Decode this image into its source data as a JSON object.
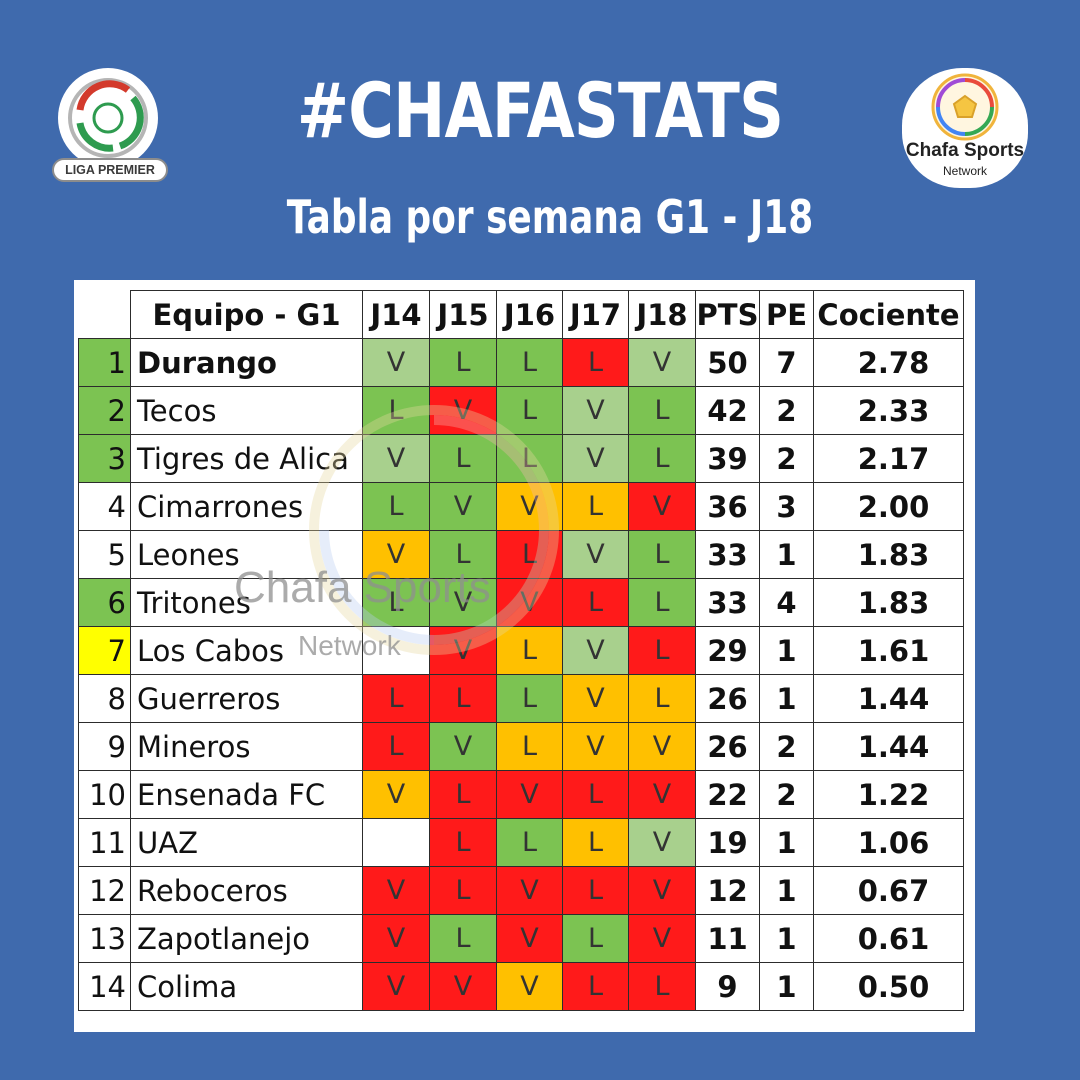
{
  "header": {
    "title": "#CHAFASTATS",
    "subtitle": "Tabla por semana G1 - J18"
  },
  "logos": {
    "left": {
      "label": "LIGA PREMIER",
      "icon": "liga-premier-logo"
    },
    "right": {
      "name": "Chafa Sports",
      "sub": "Network",
      "icon": "soccer-ball-logo"
    }
  },
  "watermark": {
    "name": "Chafa Sports",
    "sub": "Network"
  },
  "colors": {
    "background": "#3f6aad",
    "green": "#7cc352",
    "light_green": "#a8d08d",
    "orange": "#ffc000",
    "red": "#ff1a1a",
    "yellow": "#ffff00"
  },
  "table": {
    "columns": [
      "Equipo - G1",
      "J14",
      "J15",
      "J16",
      "J17",
      "J18",
      "PTS",
      "PE",
      "Cociente"
    ],
    "rows": [
      {
        "rank": "1",
        "team": "Durango",
        "bold": true,
        "rank_color": "green",
        "results": [
          [
            "V",
            "light_green"
          ],
          [
            "L",
            "green"
          ],
          [
            "L",
            "green"
          ],
          [
            "L",
            "red"
          ],
          [
            "V",
            "light_green"
          ]
        ],
        "pts": "50",
        "pe": "7",
        "coc": "2.78"
      },
      {
        "rank": "2",
        "team": "Tecos",
        "bold": false,
        "rank_color": "green",
        "results": [
          [
            "L",
            "green"
          ],
          [
            "V",
            "red"
          ],
          [
            "L",
            "green"
          ],
          [
            "V",
            "light_green"
          ],
          [
            "L",
            "green"
          ]
        ],
        "pts": "42",
        "pe": "2",
        "coc": "2.33"
      },
      {
        "rank": "3",
        "team": "Tigres de Alica",
        "bold": false,
        "rank_color": "green",
        "results": [
          [
            "V",
            "light_green"
          ],
          [
            "L",
            "green"
          ],
          [
            "L",
            "green"
          ],
          [
            "V",
            "light_green"
          ],
          [
            "L",
            "green"
          ]
        ],
        "pts": "39",
        "pe": "2",
        "coc": "2.17"
      },
      {
        "rank": "4",
        "team": "Cimarrones",
        "bold": false,
        "rank_color": "white",
        "results": [
          [
            "L",
            "green"
          ],
          [
            "V",
            "green"
          ],
          [
            "V",
            "orange"
          ],
          [
            "L",
            "orange"
          ],
          [
            "V",
            "red"
          ]
        ],
        "pts": "36",
        "pe": "3",
        "coc": "2.00"
      },
      {
        "rank": "5",
        "team": "Leones",
        "bold": false,
        "rank_color": "white",
        "results": [
          [
            "V",
            "orange"
          ],
          [
            "L",
            "green"
          ],
          [
            "L",
            "red"
          ],
          [
            "V",
            "light_green"
          ],
          [
            "L",
            "green"
          ]
        ],
        "pts": "33",
        "pe": "1",
        "coc": "1.83"
      },
      {
        "rank": "6",
        "team": "Tritones",
        "bold": false,
        "rank_color": "green",
        "results": [
          [
            "L",
            "green"
          ],
          [
            "V",
            "green"
          ],
          [
            "V",
            "red"
          ],
          [
            "L",
            "red"
          ],
          [
            "L",
            "green"
          ]
        ],
        "pts": "33",
        "pe": "4",
        "coc": "1.83"
      },
      {
        "rank": "7",
        "team": "Los Cabos",
        "bold": false,
        "rank_color": "yellow",
        "results": [
          [
            "",
            "white"
          ],
          [
            "V",
            "red"
          ],
          [
            "L",
            "orange"
          ],
          [
            "V",
            "light_green"
          ],
          [
            "L",
            "red"
          ]
        ],
        "pts": "29",
        "pe": "1",
        "coc": "1.61"
      },
      {
        "rank": "8",
        "team": "Guerreros",
        "bold": false,
        "rank_color": "white",
        "results": [
          [
            "L",
            "red"
          ],
          [
            "L",
            "red"
          ],
          [
            "L",
            "green"
          ],
          [
            "V",
            "orange"
          ],
          [
            "L",
            "orange"
          ]
        ],
        "pts": "26",
        "pe": "1",
        "coc": "1.44"
      },
      {
        "rank": "9",
        "team": "Mineros",
        "bold": false,
        "rank_color": "white",
        "results": [
          [
            "L",
            "red"
          ],
          [
            "V",
            "green"
          ],
          [
            "L",
            "orange"
          ],
          [
            "V",
            "orange"
          ],
          [
            "V",
            "orange"
          ]
        ],
        "pts": "26",
        "pe": "2",
        "coc": "1.44"
      },
      {
        "rank": "10",
        "team": "Ensenada FC",
        "bold": false,
        "rank_color": "white",
        "results": [
          [
            "V",
            "orange"
          ],
          [
            "L",
            "red"
          ],
          [
            "V",
            "red"
          ],
          [
            "L",
            "red"
          ],
          [
            "V",
            "red"
          ]
        ],
        "pts": "22",
        "pe": "2",
        "coc": "1.22"
      },
      {
        "rank": "11",
        "team": "UAZ",
        "bold": false,
        "rank_color": "white",
        "results": [
          [
            "",
            "white"
          ],
          [
            "L",
            "red"
          ],
          [
            "L",
            "green"
          ],
          [
            "L",
            "orange"
          ],
          [
            "V",
            "light_green"
          ]
        ],
        "pts": "19",
        "pe": "1",
        "coc": "1.06"
      },
      {
        "rank": "12",
        "team": "Reboceros",
        "bold": false,
        "rank_color": "white",
        "results": [
          [
            "V",
            "red"
          ],
          [
            "L",
            "red"
          ],
          [
            "V",
            "red"
          ],
          [
            "L",
            "red"
          ],
          [
            "V",
            "red"
          ]
        ],
        "pts": "12",
        "pe": "1",
        "coc": "0.67"
      },
      {
        "rank": "13",
        "team": "Zapotlanejo",
        "bold": false,
        "rank_color": "white",
        "results": [
          [
            "V",
            "red"
          ],
          [
            "L",
            "green"
          ],
          [
            "V",
            "red"
          ],
          [
            "L",
            "green"
          ],
          [
            "V",
            "red"
          ]
        ],
        "pts": "11",
        "pe": "1",
        "coc": "0.61"
      },
      {
        "rank": "14",
        "team": "Colima",
        "bold": false,
        "rank_color": "white",
        "results": [
          [
            "V",
            "red"
          ],
          [
            "V",
            "red"
          ],
          [
            "V",
            "orange"
          ],
          [
            "L",
            "red"
          ],
          [
            "L",
            "red"
          ]
        ],
        "pts": "9",
        "pe": "1",
        "coc": "0.50"
      }
    ]
  }
}
